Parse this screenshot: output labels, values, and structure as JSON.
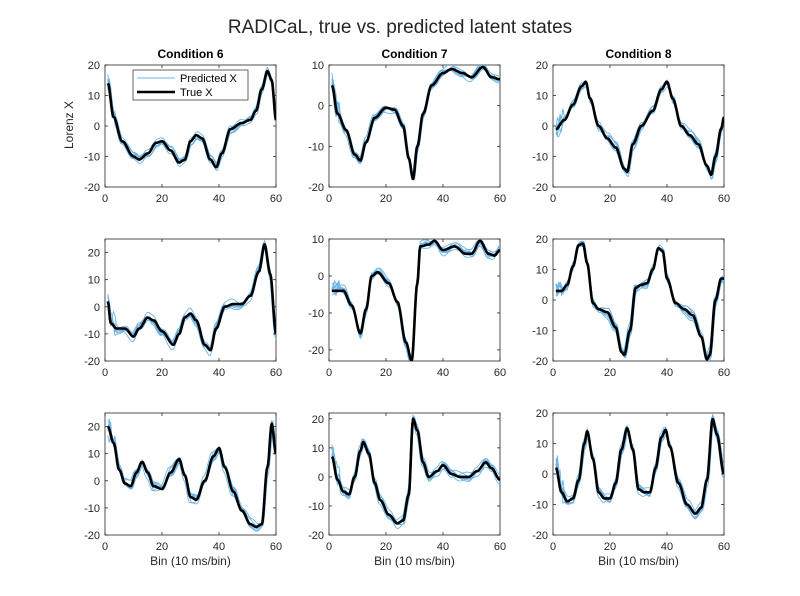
{
  "figure": {
    "title": "RADICaL, true vs. predicted latent states",
    "xlabel": "Bin (10 ms/bin)",
    "ylabel": "Lorenz X",
    "legend": {
      "predicted": "Predicted X",
      "true": "True X"
    }
  },
  "colors": {
    "predicted": "#69b4e6",
    "true": "#000000",
    "axis": "#262626",
    "background": "#ffffff"
  },
  "chart_data": [
    {
      "type": "line",
      "title": "Condition 6",
      "ylabel": "Lorenz X",
      "xlabel": "",
      "xlim": [
        0,
        60
      ],
      "ylim": [
        -20,
        20
      ],
      "xticks": [
        0,
        20,
        40,
        60
      ],
      "yticks": [
        -20,
        -10,
        0,
        10,
        20
      ],
      "legend_position": "top-left",
      "true_x": [
        [
          1,
          14
        ],
        [
          3,
          3
        ],
        [
          6,
          -5
        ],
        [
          10,
          -10
        ],
        [
          12,
          -11
        ],
        [
          15,
          -9
        ],
        [
          18,
          -5.5
        ],
        [
          20,
          -5
        ],
        [
          23,
          -8
        ],
        [
          26,
          -12
        ],
        [
          28,
          -11
        ],
        [
          30,
          -5
        ],
        [
          32,
          -3
        ],
        [
          34,
          -4
        ],
        [
          37,
          -11
        ],
        [
          39,
          -13.5
        ],
        [
          41,
          -9
        ],
        [
          44,
          -1
        ],
        [
          48,
          1
        ],
        [
          51,
          2
        ],
        [
          53,
          5
        ],
        [
          55,
          12
        ],
        [
          57,
          18
        ],
        [
          58.5,
          15
        ],
        [
          60,
          2
        ]
      ]
    },
    {
      "type": "line",
      "title": "Condition 7",
      "ylabel": "",
      "xlabel": "",
      "xlim": [
        0,
        60
      ],
      "ylim": [
        -20,
        10
      ],
      "xticks": [
        0,
        20,
        40,
        60
      ],
      "yticks": [
        -20,
        -10,
        0,
        10
      ],
      "true_x": [
        [
          1,
          5
        ],
        [
          3,
          -2
        ],
        [
          6,
          -6
        ],
        [
          9,
          -12
        ],
        [
          11,
          -13.5
        ],
        [
          13,
          -9
        ],
        [
          16,
          -3
        ],
        [
          20,
          -0.5
        ],
        [
          23,
          -1
        ],
        [
          26,
          -5
        ],
        [
          28,
          -13
        ],
        [
          29.5,
          -18
        ],
        [
          31,
          -10
        ],
        [
          33,
          -2
        ],
        [
          36,
          5
        ],
        [
          40,
          8
        ],
        [
          43,
          9
        ],
        [
          47,
          8
        ],
        [
          50,
          7
        ],
        [
          54,
          9.5
        ],
        [
          57,
          7
        ],
        [
          60,
          6.5
        ]
      ]
    },
    {
      "type": "line",
      "title": "Condition 8",
      "ylabel": "",
      "xlabel": "",
      "xlim": [
        0,
        60
      ],
      "ylim": [
        -20,
        20
      ],
      "xticks": [
        0,
        20,
        40,
        60
      ],
      "yticks": [
        -20,
        -10,
        0,
        10,
        20
      ],
      "true_x": [
        [
          1,
          -1
        ],
        [
          4,
          2
        ],
        [
          7,
          7
        ],
        [
          10,
          13
        ],
        [
          11.5,
          14.5
        ],
        [
          13,
          9
        ],
        [
          16,
          0
        ],
        [
          19,
          -4
        ],
        [
          22,
          -7
        ],
        [
          25,
          -14
        ],
        [
          26,
          -15
        ],
        [
          28,
          -6
        ],
        [
          31,
          0
        ],
        [
          35,
          5
        ],
        [
          38,
          12
        ],
        [
          40,
          14.5
        ],
        [
          42,
          9
        ],
        [
          45,
          0
        ],
        [
          48,
          -3
        ],
        [
          51,
          -6
        ],
        [
          54,
          -13
        ],
        [
          55.5,
          -16
        ],
        [
          57,
          -10
        ],
        [
          59,
          -1
        ],
        [
          60,
          3
        ]
      ]
    },
    {
      "type": "line",
      "title": "",
      "ylabel": "",
      "xlabel": "",
      "xlim": [
        0,
        60
      ],
      "ylim": [
        -20,
        25
      ],
      "xticks": [
        0,
        20,
        40,
        60
      ],
      "yticks": [
        -20,
        -10,
        0,
        10,
        20
      ],
      "true_x": [
        [
          1,
          2
        ],
        [
          2,
          -6
        ],
        [
          4,
          -8
        ],
        [
          7,
          -8
        ],
        [
          10,
          -11
        ],
        [
          12,
          -8
        ],
        [
          15,
          -4
        ],
        [
          17,
          -5
        ],
        [
          20,
          -9
        ],
        [
          24,
          -14
        ],
        [
          26,
          -10
        ],
        [
          28,
          -4
        ],
        [
          30,
          -2.5
        ],
        [
          32,
          -5
        ],
        [
          35,
          -14
        ],
        [
          37,
          -16
        ],
        [
          39,
          -8
        ],
        [
          42,
          0
        ],
        [
          45,
          1
        ],
        [
          48,
          1
        ],
        [
          51,
          4
        ],
        [
          54,
          13
        ],
        [
          56,
          23
        ],
        [
          58,
          12
        ],
        [
          60,
          -10
        ]
      ]
    },
    {
      "type": "line",
      "title": "",
      "ylabel": "",
      "xlabel": "",
      "xlim": [
        0,
        60
      ],
      "ylim": [
        -23,
        10
      ],
      "xticks": [
        0,
        20,
        40,
        60
      ],
      "yticks": [
        -20,
        -10,
        0,
        10
      ],
      "true_x": [
        [
          1,
          -4
        ],
        [
          5,
          -4
        ],
        [
          8,
          -8
        ],
        [
          11,
          -15.5
        ],
        [
          13,
          -9
        ],
        [
          15,
          0
        ],
        [
          17,
          1
        ],
        [
          21,
          -2
        ],
        [
          24,
          -7
        ],
        [
          27,
          -18
        ],
        [
          29,
          -23
        ],
        [
          31,
          -2
        ],
        [
          32,
          8
        ],
        [
          35,
          8.5
        ],
        [
          37,
          9.5
        ],
        [
          40,
          7
        ],
        [
          44,
          8
        ],
        [
          48,
          6
        ],
        [
          50,
          6
        ],
        [
          53,
          9.5
        ],
        [
          56,
          6
        ],
        [
          58,
          5.5
        ],
        [
          60,
          7
        ]
      ]
    },
    {
      "type": "line",
      "title": "",
      "ylabel": "",
      "xlabel": "",
      "xlim": [
        0,
        60
      ],
      "ylim": [
        -20,
        20
      ],
      "xticks": [
        0,
        20,
        40,
        60
      ],
      "yticks": [
        -20,
        -10,
        0,
        10,
        20
      ],
      "true_x": [
        [
          1,
          3
        ],
        [
          3,
          3
        ],
        [
          5,
          5
        ],
        [
          7,
          11
        ],
        [
          9,
          18
        ],
        [
          10.5,
          18.5
        ],
        [
          12,
          12
        ],
        [
          14,
          -1
        ],
        [
          16,
          -3
        ],
        [
          19,
          -4
        ],
        [
          22,
          -9
        ],
        [
          24,
          -17
        ],
        [
          25,
          -18
        ],
        [
          27,
          -10
        ],
        [
          29,
          4
        ],
        [
          31,
          5
        ],
        [
          33,
          5.5
        ],
        [
          35,
          10
        ],
        [
          37,
          17
        ],
        [
          38.5,
          16
        ],
        [
          40,
          7
        ],
        [
          43,
          -1
        ],
        [
          46,
          -3
        ],
        [
          49,
          -5
        ],
        [
          52,
          -12
        ],
        [
          54,
          -19.5
        ],
        [
          55,
          -18
        ],
        [
          57,
          0
        ],
        [
          59,
          7
        ],
        [
          60,
          7
        ]
      ]
    },
    {
      "type": "line",
      "title": "",
      "ylabel": "",
      "xlabel": "Bin (10 ms/bin)",
      "xlim": [
        0,
        60
      ],
      "ylim": [
        -20,
        25
      ],
      "xticks": [
        0,
        20,
        40,
        60
      ],
      "yticks": [
        -20,
        -10,
        0,
        10,
        20
      ],
      "true_x": [
        [
          1,
          20
        ],
        [
          3,
          14
        ],
        [
          5,
          4
        ],
        [
          7,
          -1
        ],
        [
          9,
          -2
        ],
        [
          11,
          3
        ],
        [
          13,
          7
        ],
        [
          15,
          3
        ],
        [
          17,
          -2
        ],
        [
          20,
          -3
        ],
        [
          23,
          3
        ],
        [
          26,
          8
        ],
        [
          28,
          2
        ],
        [
          30,
          -6
        ],
        [
          32,
          -7
        ],
        [
          35,
          0
        ],
        [
          38,
          9
        ],
        [
          40,
          12
        ],
        [
          42,
          5
        ],
        [
          45,
          -4
        ],
        [
          48,
          -11
        ],
        [
          51,
          -16
        ],
        [
          53,
          -17
        ],
        [
          55,
          -16
        ],
        [
          57,
          5
        ],
        [
          58.5,
          21
        ],
        [
          60,
          10
        ]
      ]
    },
    {
      "type": "line",
      "title": "",
      "ylabel": "",
      "xlabel": "Bin (10 ms/bin)",
      "xlim": [
        0,
        60
      ],
      "ylim": [
        -20,
        22
      ],
      "xticks": [
        0,
        20,
        40,
        60
      ],
      "yticks": [
        -20,
        -10,
        0,
        10,
        20
      ],
      "true_x": [
        [
          1,
          7
        ],
        [
          3,
          -1
        ],
        [
          5,
          -5
        ],
        [
          7,
          -6
        ],
        [
          9,
          0
        ],
        [
          11,
          9
        ],
        [
          12,
          12
        ],
        [
          14,
          8
        ],
        [
          16,
          -2
        ],
        [
          18,
          -8
        ],
        [
          21,
          -13
        ],
        [
          24,
          -16
        ],
        [
          26,
          -15
        ],
        [
          28,
          -6
        ],
        [
          29.5,
          20
        ],
        [
          31,
          16
        ],
        [
          33,
          5
        ],
        [
          35,
          0
        ],
        [
          38,
          2
        ],
        [
          40,
          4
        ],
        [
          43,
          1
        ],
        [
          46,
          0
        ],
        [
          49,
          0
        ],
        [
          52,
          2
        ],
        [
          55,
          5
        ],
        [
          57,
          3
        ],
        [
          60,
          -1
        ]
      ]
    },
    {
      "type": "line",
      "title": "",
      "ylabel": "",
      "xlabel": "Bin (10 ms/bin)",
      "xlim": [
        0,
        60
      ],
      "ylim": [
        -20,
        20
      ],
      "xticks": [
        0,
        20,
        40,
        60
      ],
      "yticks": [
        -20,
        -10,
        0,
        10,
        20
      ],
      "true_x": [
        [
          1,
          2
        ],
        [
          3,
          -6
        ],
        [
          5,
          -9
        ],
        [
          7,
          -8
        ],
        [
          9,
          -2
        ],
        [
          11,
          10
        ],
        [
          12,
          14
        ],
        [
          14,
          5
        ],
        [
          16,
          -6
        ],
        [
          18,
          -8
        ],
        [
          20,
          -8
        ],
        [
          22,
          -3
        ],
        [
          24,
          8
        ],
        [
          26,
          15
        ],
        [
          28,
          8
        ],
        [
          30,
          -5
        ],
        [
          32,
          -6
        ],
        [
          34,
          -6
        ],
        [
          36,
          2
        ],
        [
          38,
          12
        ],
        [
          39.5,
          14.5
        ],
        [
          41,
          9
        ],
        [
          44,
          -3
        ],
        [
          47,
          -10
        ],
        [
          50,
          -13
        ],
        [
          52,
          -11
        ],
        [
          54,
          -2
        ],
        [
          56,
          18
        ],
        [
          57.5,
          13
        ],
        [
          60,
          0
        ]
      ]
    }
  ]
}
